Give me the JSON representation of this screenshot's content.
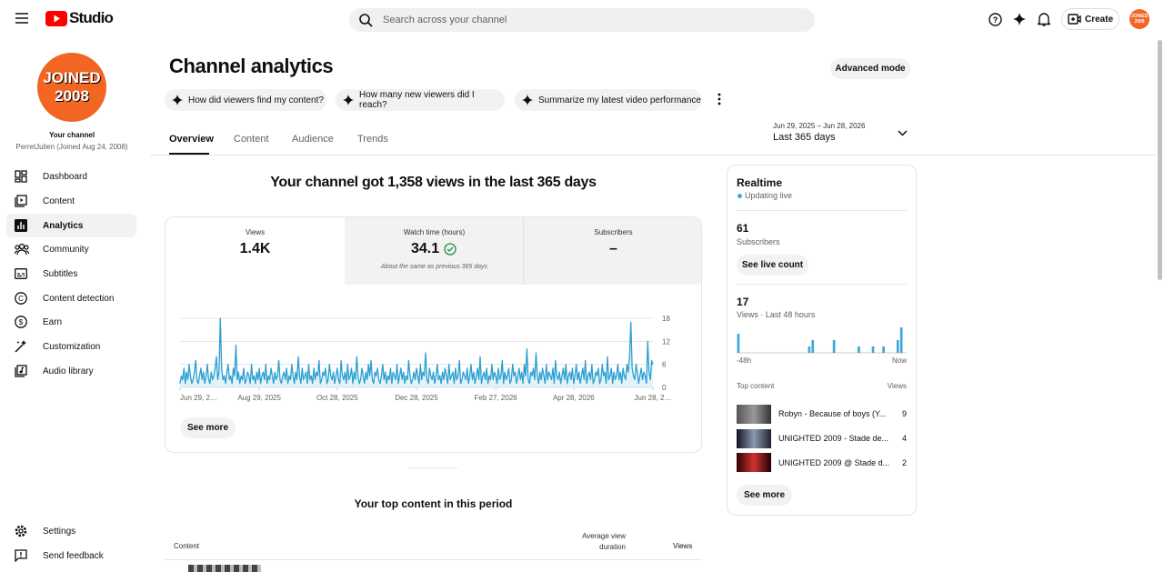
{
  "header": {
    "logo": "Studio",
    "search_placeholder": "Search across your channel",
    "create": "Create",
    "avatar": [
      "JOINED",
      "2008"
    ]
  },
  "sidebar": {
    "avatar": [
      "JOINED",
      "2008"
    ],
    "channel_label": "Your channel",
    "channel_name": "PerretJulien (Joined Aug 24, 2008)",
    "nav": [
      "Dashboard",
      "Content",
      "Analytics",
      "Community",
      "Subtitles",
      "Content detection",
      "Earn",
      "Customization",
      "Audio library"
    ],
    "footer": [
      "Settings",
      "Send feedback"
    ]
  },
  "main": {
    "title": "Channel analytics",
    "advanced_mode": "Advanced mode",
    "prompts": [
      "How did viewers find my content?",
      "How many new viewers did I reach?",
      "Summarize my latest video performance"
    ],
    "date_range": "Jun 29, 2025 – Jun 28, 2026",
    "period": "Last 365 days",
    "tabs": [
      "Overview",
      "Content",
      "Audience",
      "Trends"
    ],
    "headline": "Your channel got 1,358 views in the last 365 days",
    "metrics": [
      {
        "label": "Views",
        "value": "1.4K"
      },
      {
        "label": "Watch time (hours)",
        "value": "34.1",
        "note": "About the same as previous 365 days"
      },
      {
        "label": "Subscribers",
        "value": "–"
      }
    ],
    "see_more": "See more",
    "top_content_title": "Your top content in this period",
    "columns": [
      "Content",
      "Average view duration",
      "Views"
    ]
  },
  "realtime": {
    "title": "Realtime",
    "status": "Updating live",
    "subscribers": "61",
    "subscribers_label": "Subscribers",
    "live_count": "See live count",
    "views": "17",
    "views_label": "Views · Last 48 hours",
    "top_content": "Top content",
    "top_views": "Views",
    "items": [
      {
        "title": "Robyn - Because of boys (Y...",
        "views": "9"
      },
      {
        "title": "UNIGHTED 2009 - Stade de...",
        "views": "4"
      },
      {
        "title": "UNIGHTED 2009 @ Stade d...",
        "views": "2"
      }
    ],
    "see_more": "See more"
  },
  "chart_data": [
    {
      "type": "line",
      "color": "#2b9fd1",
      "grid": true,
      "xlim": [
        0,
        364
      ],
      "xticks": [
        {
          "value": 0,
          "label": "Jun 29, 2…"
        },
        {
          "value": 61,
          "label": "Aug 29, 2025"
        },
        {
          "value": 121,
          "label": "Oct 28, 2025"
        },
        {
          "value": 182,
          "label": "Dec 28, 2025"
        },
        {
          "value": 243,
          "label": "Feb 27, 2026"
        },
        {
          "value": 303,
          "label": "Apr 28, 2026"
        },
        {
          "value": 364,
          "label": "Jun 28, 2…"
        }
      ],
      "ylim": [
        0,
        18
      ],
      "yticks": [
        0,
        6,
        12,
        18
      ],
      "values": [
        1,
        3,
        2,
        5,
        1,
        4,
        2,
        6,
        3,
        1,
        2,
        4,
        7,
        2,
        1,
        3,
        5,
        2,
        4,
        1,
        3,
        6,
        2,
        1,
        4,
        2,
        3,
        5,
        8,
        2,
        4,
        18,
        5,
        2,
        3,
        1,
        4,
        6,
        2,
        3,
        1,
        5,
        3,
        11,
        2,
        4,
        1,
        3,
        2,
        5,
        1,
        2,
        4,
        3,
        1,
        6,
        2,
        3,
        1,
        4,
        2,
        5,
        1,
        3,
        4,
        2,
        6,
        1,
        3,
        2,
        5,
        3,
        1,
        4,
        2,
        3,
        7,
        2,
        1,
        3,
        4,
        2,
        5,
        1,
        3,
        2,
        6,
        3,
        1,
        4,
        2,
        8,
        3,
        1,
        5,
        2,
        3,
        4,
        1,
        6,
        2,
        3,
        1,
        5,
        2,
        4,
        3,
        7,
        1,
        2,
        4,
        3,
        5,
        1,
        2,
        6,
        3,
        2,
        4,
        1,
        3,
        5,
        2,
        1,
        7,
        3,
        2,
        4,
        1,
        6,
        2,
        3,
        5,
        1,
        4,
        2,
        8,
        3,
        1,
        2,
        5,
        3,
        1,
        4,
        2,
        6,
        3,
        7,
        2,
        1,
        4,
        3,
        5,
        2,
        1,
        3,
        6,
        2,
        4,
        1,
        3,
        2,
        5,
        1,
        4,
        3,
        2,
        6,
        1,
        3,
        5,
        2,
        4,
        1,
        3,
        2,
        7,
        3,
        1,
        2,
        4,
        2,
        5,
        3,
        1,
        6,
        2,
        4,
        3,
        9,
        2,
        1,
        5,
        3,
        2,
        4,
        1,
        3,
        6,
        2,
        3,
        1,
        4,
        2,
        5,
        3,
        1,
        6,
        2,
        3,
        4,
        1,
        5,
        2,
        3,
        7,
        1,
        2,
        4,
        3,
        2,
        5,
        1,
        3,
        6,
        2,
        4,
        1,
        3,
        5,
        2,
        8,
        1,
        3,
        4,
        2,
        5,
        1,
        3,
        2,
        6,
        2,
        4,
        3,
        1,
        5,
        2,
        3,
        7,
        1,
        4,
        2,
        3,
        5,
        1,
        2,
        6,
        3,
        4,
        1,
        3,
        5,
        2,
        4,
        1,
        6,
        3,
        10,
        2,
        1,
        4,
        3,
        5,
        2,
        9,
        3,
        1,
        4,
        2,
        5,
        3,
        1,
        6,
        2,
        4,
        3,
        2,
        5,
        1,
        7,
        3,
        2,
        4,
        1,
        3,
        5,
        2,
        6,
        1,
        3,
        4,
        2,
        5,
        1,
        3,
        6,
        2,
        4,
        1,
        3,
        5,
        2,
        7,
        1,
        3,
        4,
        2,
        6,
        1,
        2,
        4,
        3,
        5,
        1,
        2,
        6,
        3,
        4,
        1,
        8,
        2,
        3,
        5,
        1,
        4,
        2,
        3,
        6,
        2,
        4,
        1,
        5,
        3,
        2,
        6,
        4,
        8,
        17,
        5,
        3,
        2,
        6,
        4,
        1,
        3,
        5,
        2,
        4,
        3,
        1,
        12,
        4,
        2,
        7,
        6
      ]
    },
    {
      "type": "bar",
      "color": "#3ea6d8",
      "ylim": [
        0,
        4
      ],
      "xlabels": [
        "-48h",
        "Now"
      ],
      "values": [
        3,
        0,
        0,
        0,
        0,
        0,
        0,
        0,
        0,
        0,
        0,
        0,
        0,
        0,
        0,
        0,
        0,
        0,
        0,
        0,
        1,
        2,
        0,
        0,
        0,
        0,
        0,
        2,
        0,
        0,
        0,
        0,
        0,
        0,
        1,
        0,
        0,
        0,
        1,
        0,
        0,
        1,
        0,
        0,
        0,
        2,
        4,
        0
      ]
    }
  ]
}
